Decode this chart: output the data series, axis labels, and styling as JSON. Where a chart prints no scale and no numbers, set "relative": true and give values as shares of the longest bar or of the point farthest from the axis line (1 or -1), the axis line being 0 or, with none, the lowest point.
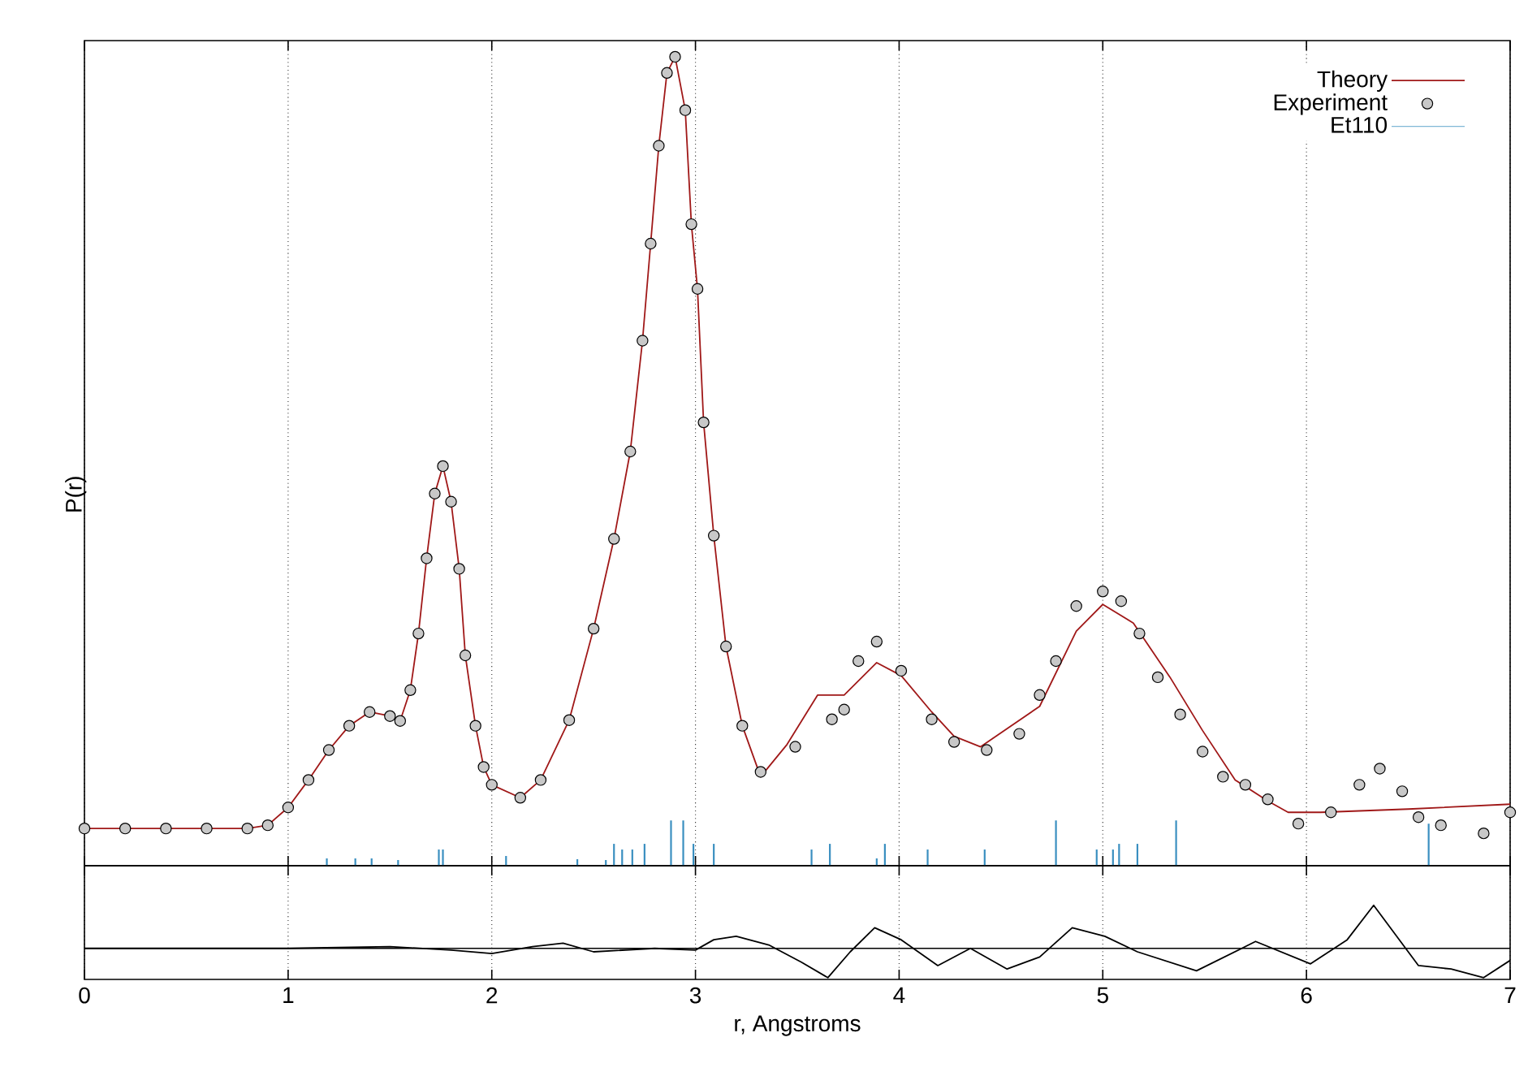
{
  "chart_data": [
    {
      "type": "line",
      "relative": true,
      "ylabel": "P(r)",
      "xlim": [
        0,
        7
      ],
      "xticks": [
        0,
        1,
        2,
        3,
        4,
        5,
        6,
        7
      ],
      "tick_labels": false,
      "grid": "x",
      "legend": "top right",
      "series": [
        {
          "name": "Theory",
          "color": "#a01818",
          "x": [
            0,
            0.4,
            0.8,
            0.9,
            1.0,
            1.1,
            1.2,
            1.3,
            1.4,
            1.5,
            1.55,
            1.6,
            1.64,
            1.68,
            1.72,
            1.76,
            1.8,
            1.84,
            1.87,
            1.92,
            1.96,
            2.0,
            2.14,
            2.24,
            2.38,
            2.5,
            2.6,
            2.68,
            2.74,
            2.78,
            2.82,
            2.86,
            2.9,
            2.95,
            2.98,
            3.01,
            3.04,
            3.09,
            3.15,
            3.23,
            3.32,
            3.45,
            3.6,
            3.73,
            3.89,
            4.01,
            4.16,
            4.27,
            4.4,
            4.69,
            4.87,
            5.0,
            5.15,
            5.33,
            5.49,
            5.65,
            5.81,
            5.91,
            6.07,
            6.5,
            7.0
          ],
          "values": [
            0.046,
            0.046,
            0.046,
            0.05,
            0.072,
            0.106,
            0.143,
            0.173,
            0.19,
            0.185,
            0.179,
            0.217,
            0.287,
            0.38,
            0.46,
            0.494,
            0.45,
            0.367,
            0.26,
            0.173,
            0.122,
            0.1,
            0.084,
            0.106,
            0.18,
            0.293,
            0.404,
            0.512,
            0.649,
            0.769,
            0.89,
            0.98,
            1.0,
            0.934,
            0.793,
            0.713,
            0.548,
            0.408,
            0.271,
            0.173,
            0.11,
            0.15,
            0.211,
            0.211,
            0.251,
            0.235,
            0.19,
            0.16,
            0.147,
            0.197,
            0.29,
            0.323,
            0.3,
            0.233,
            0.167,
            0.106,
            0.08,
            0.066,
            0.066,
            0.07,
            0.076
          ]
        },
        {
          "name": "Experiment",
          "type": "scatter",
          "color": "#c8c8c8",
          "x": [
            0,
            0.2,
            0.4,
            0.6,
            0.8,
            0.9,
            1.0,
            1.1,
            1.2,
            1.3,
            1.4,
            1.5,
            1.55,
            1.6,
            1.64,
            1.68,
            1.72,
            1.76,
            1.8,
            1.84,
            1.87,
            1.92,
            1.96,
            2.0,
            2.14,
            2.24,
            2.38,
            2.5,
            2.6,
            2.68,
            2.74,
            2.78,
            2.82,
            2.86,
            2.9,
            2.95,
            2.98,
            3.01,
            3.04,
            3.09,
            3.15,
            3.23,
            3.32,
            3.49,
            3.67,
            3.73,
            3.8,
            3.89,
            4.01,
            4.16,
            4.27,
            4.43,
            4.59,
            4.69,
            4.77,
            4.87,
            5.0,
            5.09,
            5.18,
            5.27,
            5.38,
            5.49,
            5.59,
            5.7,
            5.81,
            5.96,
            6.12,
            6.26,
            6.36,
            6.47,
            6.55,
            6.66,
            6.87,
            7.0
          ],
          "values": [
            0.046,
            0.046,
            0.046,
            0.046,
            0.046,
            0.05,
            0.072,
            0.106,
            0.143,
            0.173,
            0.19,
            0.185,
            0.179,
            0.217,
            0.287,
            0.38,
            0.46,
            0.494,
            0.45,
            0.367,
            0.26,
            0.173,
            0.122,
            0.1,
            0.084,
            0.106,
            0.18,
            0.293,
            0.404,
            0.512,
            0.649,
            0.769,
            0.89,
            0.98,
            1.0,
            0.934,
            0.793,
            0.713,
            0.548,
            0.408,
            0.271,
            0.173,
            0.116,
            0.147,
            0.181,
            0.193,
            0.253,
            0.277,
            0.241,
            0.181,
            0.153,
            0.143,
            0.163,
            0.211,
            0.253,
            0.321,
            0.339,
            0.327,
            0.287,
            0.233,
            0.187,
            0.141,
            0.11,
            0.1,
            0.082,
            0.052,
            0.066,
            0.1,
            0.12,
            0.092,
            0.06,
            0.05,
            0.04,
            0.066
          ]
        },
        {
          "name": "Et110",
          "type": "bar",
          "color": "#3a8fc0",
          "x": [
            1.19,
            1.33,
            1.41,
            1.54,
            1.74,
            1.76,
            2.07,
            2.42,
            2.56,
            2.6,
            2.64,
            2.69,
            2.75,
            2.88,
            2.94,
            2.99,
            3.09,
            3.57,
            3.66,
            3.89,
            3.93,
            4.14,
            4.42,
            4.77,
            4.97,
            5.05,
            5.08,
            5.17,
            5.36,
            6.6
          ],
          "values": [
            0.009,
            0.009,
            0.009,
            0.007,
            0.02,
            0.02,
            0.012,
            0.008,
            0.007,
            0.027,
            0.02,
            0.02,
            0.027,
            0.056,
            0.056,
            0.027,
            0.027,
            0.02,
            0.027,
            0.009,
            0.027,
            0.02,
            0.02,
            0.056,
            0.02,
            0.02,
            0.027,
            0.027,
            0.056,
            0.052
          ]
        }
      ]
    },
    {
      "type": "line",
      "relative": true,
      "xlabel": "r, Angstroms",
      "xlim": [
        0,
        7
      ],
      "xticks": [
        0,
        1,
        2,
        3,
        4,
        5,
        6,
        7
      ],
      "tick_labels": "x",
      "grid": "x",
      "series": [
        {
          "color": "#000000",
          "x": [
            0,
            1.0,
            1.5,
            1.8,
            2.0,
            2.2,
            2.35,
            2.5,
            2.8,
            3.0,
            3.09,
            3.2,
            3.36,
            3.52,
            3.65,
            3.76,
            3.88,
            4.01,
            4.19,
            4.35,
            4.53,
            4.69,
            4.85,
            5.01,
            5.17,
            5.46,
            5.75,
            6.02,
            6.2,
            6.33,
            6.55,
            6.71,
            6.87,
            7.0
          ],
          "values": [
            0,
            0,
            0.04,
            -0.04,
            -0.12,
            0.04,
            0.12,
            -0.08,
            0,
            -0.04,
            0.2,
            0.28,
            0.08,
            -0.32,
            -0.68,
            -0.08,
            0.48,
            0.2,
            -0.4,
            0,
            -0.48,
            -0.2,
            0.48,
            0.28,
            -0.08,
            -0.52,
            0.16,
            -0.36,
            0.2,
            1.0,
            -0.4,
            -0.48,
            -0.68,
            -0.28
          ]
        }
      ]
    }
  ]
}
